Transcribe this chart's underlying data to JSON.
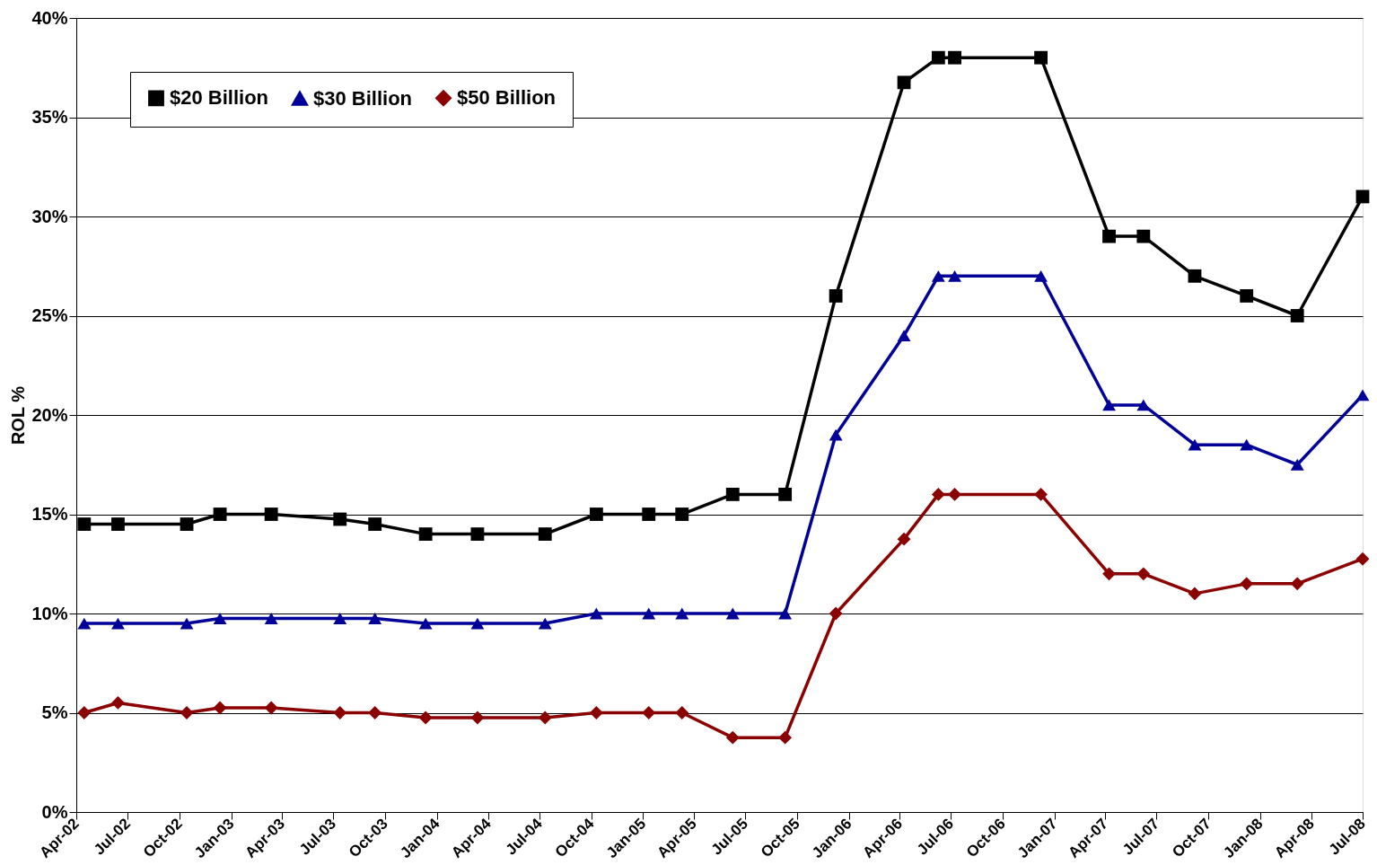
{
  "chart_data": {
    "type": "line",
    "ylabel": "ROL %",
    "x": [
      "2002-04-15",
      "2002-06-14",
      "2002-10-14",
      "2002-12-12",
      "2003-03-13",
      "2003-07-13",
      "2003-09-13",
      "2003-12-12",
      "2004-03-13",
      "2004-07-11",
      "2004-10-10",
      "2005-01-11",
      "2005-03-11",
      "2005-06-09",
      "2005-09-10",
      "2005-12-09",
      "2006-04-09",
      "2006-06-09",
      "2006-07-08",
      "2006-12-08",
      "2007-04-08",
      "2007-06-08",
      "2007-09-07",
      "2007-12-08",
      "2008-03-07",
      "2008-07-01"
    ],
    "series": [
      {
        "name": "$20 Billion",
        "color": "#000000",
        "marker": "square",
        "values": [
          14.5,
          14.5,
          14.5,
          15,
          15,
          14.75,
          14.5,
          14,
          14,
          14,
          15,
          15,
          15,
          16,
          16,
          26,
          36.75,
          38,
          38,
          38,
          29,
          29,
          27,
          26,
          25,
          31
        ]
      },
      {
        "name": "$30 Billion",
        "color": "#000099",
        "marker": "triangle",
        "values": [
          9.5,
          9.5,
          9.5,
          9.75,
          9.75,
          9.75,
          9.75,
          9.5,
          9.5,
          9.5,
          10,
          10,
          10,
          10,
          10,
          19,
          24,
          27,
          27,
          27,
          20.5,
          20.5,
          18.5,
          18.5,
          17.5,
          21
        ]
      },
      {
        "name": "$50 Billion",
        "color": "#8b0000",
        "marker": "diamond",
        "values": [
          5,
          5.5,
          5,
          5.25,
          5.25,
          5,
          5,
          4.75,
          4.75,
          4.75,
          5,
          5,
          5,
          3.75,
          3.75,
          10,
          13.75,
          16,
          16,
          16,
          12,
          12,
          11,
          11.5,
          11.5,
          12.75
        ]
      }
    ],
    "xlim": [
      "2002-04-01",
      "2008-07-01"
    ],
    "xticks": [
      {
        "value": "2002-04-01",
        "label": "Apr-02"
      },
      {
        "value": "2002-07-01",
        "label": "Jul-02"
      },
      {
        "value": "2002-10-01",
        "label": "Oct-02"
      },
      {
        "value": "2003-01-01",
        "label": "Jan-03"
      },
      {
        "value": "2003-04-01",
        "label": "Apr-03"
      },
      {
        "value": "2003-07-01",
        "label": "Jul-03"
      },
      {
        "value": "2003-10-01",
        "label": "Oct-03"
      },
      {
        "value": "2004-01-01",
        "label": "Jan-04"
      },
      {
        "value": "2004-04-01",
        "label": "Apr-04"
      },
      {
        "value": "2004-07-01",
        "label": "Jul-04"
      },
      {
        "value": "2004-10-01",
        "label": "Oct-04"
      },
      {
        "value": "2005-01-01",
        "label": "Jan-05"
      },
      {
        "value": "2005-04-01",
        "label": "Apr-05"
      },
      {
        "value": "2005-07-01",
        "label": "Jul-05"
      },
      {
        "value": "2005-10-01",
        "label": "Oct-05"
      },
      {
        "value": "2006-01-01",
        "label": "Jan-06"
      },
      {
        "value": "2006-04-01",
        "label": "Apr-06"
      },
      {
        "value": "2006-07-01",
        "label": "Jul-06"
      },
      {
        "value": "2006-10-01",
        "label": "Oct-06"
      },
      {
        "value": "2007-01-01",
        "label": "Jan-07"
      },
      {
        "value": "2007-04-01",
        "label": "Apr-07"
      },
      {
        "value": "2007-07-01",
        "label": "Jul-07"
      },
      {
        "value": "2007-10-01",
        "label": "Oct-07"
      },
      {
        "value": "2008-01-01",
        "label": "Jan-08"
      },
      {
        "value": "2008-04-01",
        "label": "Apr-08"
      },
      {
        "value": "2008-07-01",
        "label": "Jul-08"
      }
    ],
    "ylim": [
      0,
      40
    ],
    "yticks": [
      {
        "value": 0,
        "label": "0%"
      },
      {
        "value": 5,
        "label": "5%"
      },
      {
        "value": 10,
        "label": "10%"
      },
      {
        "value": 15,
        "label": "15%"
      },
      {
        "value": 20,
        "label": "20%"
      },
      {
        "value": 25,
        "label": "25%"
      },
      {
        "value": 30,
        "label": "30%"
      },
      {
        "value": 35,
        "label": "35%"
      },
      {
        "value": 40,
        "label": "40%"
      }
    ],
    "grid": "y",
    "legend": "top left",
    "line_style": "solid"
  }
}
